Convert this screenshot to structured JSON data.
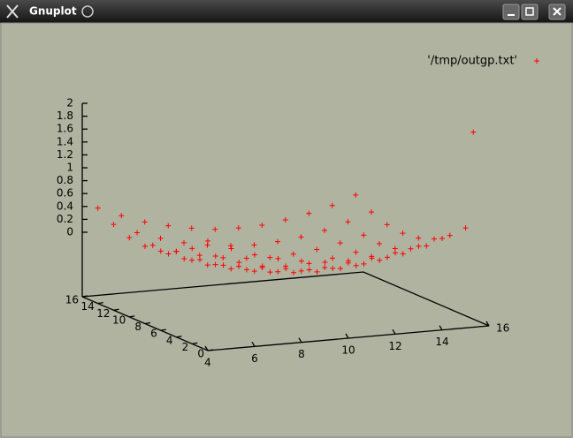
{
  "window": {
    "title": "Gnuplot"
  },
  "chart_data": {
    "type": "scatter3d",
    "xlim": [
      4,
      16
    ],
    "ylim": [
      0,
      16
    ],
    "zlim": [
      -1,
      2
    ],
    "xticks": [
      4,
      6,
      8,
      10,
      12,
      14,
      16
    ],
    "yticks": [
      0,
      2,
      4,
      6,
      8,
      10,
      12,
      14,
      16
    ],
    "zticks": [
      0,
      0.2,
      0.4,
      0.6,
      0.8,
      1,
      1.2,
      1.4,
      1.6,
      1.8,
      2
    ],
    "legend": "upper right",
    "series": [
      {
        "name": "'/tmp/outgp.txt'",
        "color": "#ff0000",
        "marker": "+",
        "x": [
          4,
          5,
          6,
          7,
          8,
          9,
          10,
          11,
          12,
          13,
          14,
          15,
          4,
          5,
          6,
          7,
          8,
          9,
          10,
          11,
          12,
          13,
          14,
          15,
          4,
          5,
          6,
          7,
          8,
          9,
          10,
          11,
          12,
          13,
          14,
          15,
          4,
          5,
          6,
          7,
          8,
          9,
          10,
          11,
          12,
          13,
          14,
          15,
          4,
          5,
          6,
          7,
          8,
          9,
          10,
          11,
          12,
          13,
          14,
          15,
          4,
          5,
          6,
          7,
          8,
          9,
          10,
          11,
          12,
          13,
          14,
          15,
          4,
          5,
          6,
          7,
          8,
          9,
          10,
          11,
          12,
          13,
          14,
          15,
          4,
          5,
          6,
          7,
          8,
          9,
          10,
          11,
          12,
          13,
          14,
          15,
          16
        ],
        "y": [
          0,
          0,
          0,
          0,
          0,
          0,
          0,
          0,
          0,
          0,
          0,
          0,
          2,
          2,
          2,
          2,
          2,
          2,
          2,
          2,
          2,
          2,
          2,
          2,
          4,
          4,
          4,
          4,
          4,
          4,
          4,
          4,
          4,
          4,
          4,
          4,
          6,
          6,
          6,
          6,
          6,
          6,
          6,
          6,
          6,
          6,
          6,
          6,
          8,
          8,
          8,
          8,
          8,
          8,
          8,
          8,
          8,
          8,
          8,
          8,
          10,
          10,
          10,
          10,
          10,
          10,
          10,
          10,
          10,
          10,
          10,
          10,
          12,
          12,
          12,
          12,
          12,
          12,
          12,
          12,
          12,
          12,
          12,
          12,
          14,
          14,
          14,
          14,
          14,
          14,
          14,
          14,
          14,
          14,
          14,
          14,
          2
        ],
        "z": [
          0.7,
          0.55,
          0.42,
          0.33,
          0.26,
          0.21,
          0.2,
          0.21,
          0.26,
          0.33,
          0.42,
          0.55,
          0.48,
          0.33,
          0.2,
          0.11,
          0.04,
          -0.01,
          -0.02,
          -0.01,
          0.04,
          0.11,
          0.2,
          0.33,
          0.33,
          0.17,
          0.05,
          -0.05,
          -0.12,
          -0.16,
          -0.18,
          -0.16,
          -0.12,
          -0.05,
          0.05,
          0.17,
          0.23,
          0.08,
          -0.05,
          -0.14,
          -0.21,
          -0.25,
          -0.27,
          -0.25,
          -0.21,
          -0.14,
          -0.05,
          0.08,
          0.2,
          0.05,
          -0.08,
          -0.18,
          -0.24,
          -0.29,
          -0.3,
          -0.29,
          -0.24,
          -0.18,
          -0.08,
          0.05,
          0.23,
          0.08,
          -0.05,
          -0.14,
          -0.21,
          -0.25,
          -0.27,
          -0.25,
          -0.21,
          -0.14,
          -0.05,
          0.08,
          0.33,
          0.17,
          0.05,
          -0.05,
          -0.12,
          -0.16,
          -0.18,
          -0.16,
          -0.12,
          -0.05,
          0.05,
          0.17,
          0.48,
          0.33,
          0.2,
          0.11,
          0.04,
          -0.01,
          -0.02,
          -0.01,
          0.04,
          0.11,
          0.2,
          0.33,
          1.9
        ]
      }
    ]
  }
}
